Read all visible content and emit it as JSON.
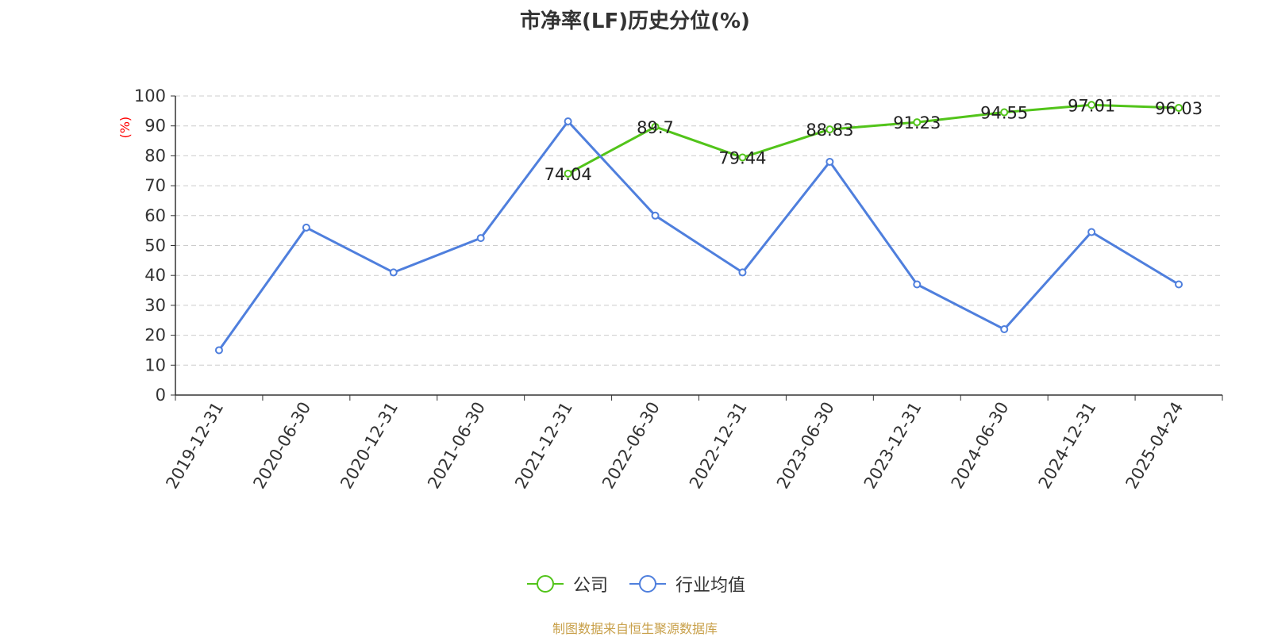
{
  "title": "市净率(LF)历史分位(%)",
  "source": "制图数据来自恒生聚源数据库",
  "chart_data": {
    "type": "line",
    "title": "市净率(LF)历史分位(%)",
    "ylabel": "(%)",
    "ylabel_color": "#ff0000",
    "ylim": [
      0,
      100
    ],
    "yticks": [
      0,
      10,
      20,
      30,
      40,
      50,
      60,
      70,
      80,
      90,
      100
    ],
    "grid": true,
    "legend_position": "bottom-center",
    "categories": [
      "2019-12-31",
      "2020-06-30",
      "2020-12-31",
      "2021-06-30",
      "2021-12-31",
      "2022-06-30",
      "2022-12-31",
      "2023-06-30",
      "2023-12-31",
      "2024-06-30",
      "2024-12-31",
      "2025-04-24"
    ],
    "series": [
      {
        "name": "公司",
        "color": "#52c41a",
        "show_labels": true,
        "values": [
          null,
          null,
          null,
          null,
          74.04,
          89.7,
          79.44,
          88.83,
          91.23,
          94.55,
          97.01,
          96.03
        ]
      },
      {
        "name": "行业均值",
        "color": "#4f7fdd",
        "show_labels": false,
        "values": [
          15,
          56,
          41,
          52.5,
          91.5,
          60,
          41,
          78,
          37,
          22,
          54.5,
          37
        ]
      }
    ]
  }
}
